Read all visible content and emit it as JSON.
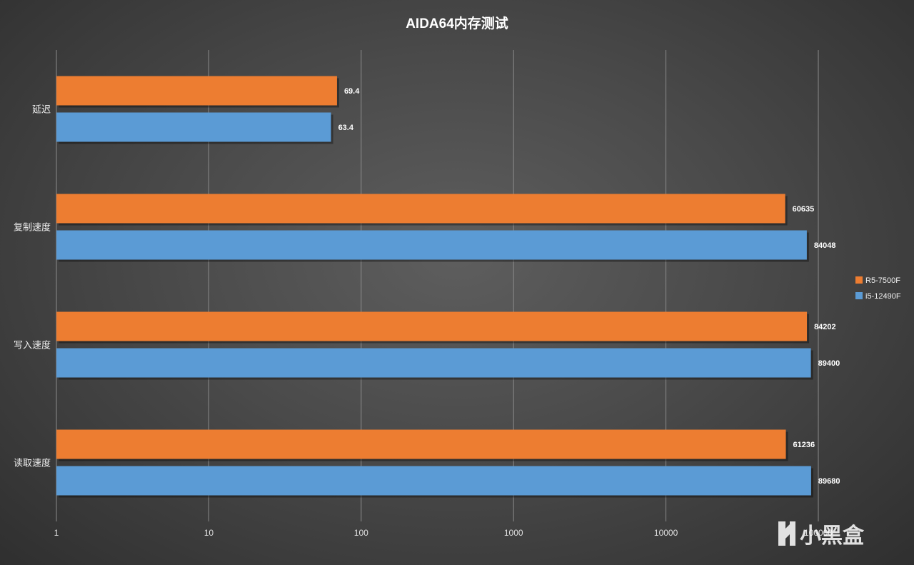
{
  "chart_data": {
    "type": "bar",
    "orientation": "horizontal",
    "title": "AIDA64内存测试",
    "categories": [
      "延迟",
      "复制速度",
      "写入速度",
      "读取速度"
    ],
    "series": [
      {
        "name": "R5-7500F",
        "color": "#ed7d31",
        "values": [
          69.4,
          60635,
          84202,
          61236
        ]
      },
      {
        "name": "i5-12490F",
        "color": "#5b9bd5",
        "values": [
          63.4,
          84048,
          89400,
          89680
        ]
      }
    ],
    "x_scale": "log",
    "xlim": [
      1,
      100000
    ],
    "x_ticks": [
      1,
      10,
      100,
      1000,
      10000,
      100000
    ],
    "x_tick_labels": [
      "1",
      "10",
      "100",
      "1000",
      "10000",
      "100000"
    ],
    "grid": true,
    "legend_position": "right"
  },
  "watermark": {
    "text": "小黑盒"
  }
}
